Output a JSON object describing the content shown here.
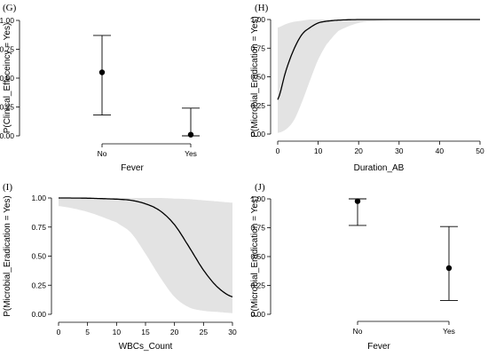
{
  "chart_data": [
    {
      "panel": "(G)",
      "type": "scatter",
      "xlabel": "Fever",
      "ylabel": "P(Clinical_Effeceincy = Yes)",
      "categories": [
        "No",
        "Yes"
      ],
      "values": [
        0.55,
        0.01
      ],
      "lower": [
        0.18,
        0.0
      ],
      "upper": [
        0.87,
        0.24
      ],
      "ylim": [
        0,
        1
      ],
      "yticks": [
        "0.00",
        "0.25",
        "0.50",
        "0.75",
        "1.00"
      ]
    },
    {
      "panel": "(H)",
      "type": "line",
      "xlabel": "Duration_AB",
      "ylabel": "P(Microbial_Eradication = Yes)",
      "xlim": [
        0,
        50
      ],
      "ylim": [
        0,
        1
      ],
      "xticks": [
        "0",
        "10",
        "20",
        "30",
        "40",
        "50"
      ],
      "yticks": [
        "0.00",
        "0.25",
        "0.50",
        "0.75",
        "1.00"
      ],
      "x": [
        0,
        2,
        4,
        6,
        8,
        10,
        12,
        15,
        20,
        25,
        30,
        40,
        50
      ],
      "y": [
        0.3,
        0.55,
        0.74,
        0.87,
        0.93,
        0.97,
        0.985,
        0.995,
        1.0,
        1.0,
        1.0,
        1.0,
        1.0
      ],
      "lower": [
        0.01,
        0.04,
        0.12,
        0.28,
        0.47,
        0.65,
        0.78,
        0.9,
        0.97,
        0.99,
        1.0,
        1.0,
        1.0
      ],
      "upper": [
        0.93,
        0.96,
        0.98,
        0.99,
        1.0,
        1.0,
        1.0,
        1.0,
        1.0,
        1.0,
        1.0,
        1.0,
        1.0
      ]
    },
    {
      "panel": "(I)",
      "type": "line",
      "xlabel": "WBCs_Count",
      "ylabel": "P(Microbial_Eradication = Yes)",
      "xlim": [
        0,
        30
      ],
      "ylim": [
        0,
        1
      ],
      "xticks": [
        "0",
        "5",
        "10",
        "15",
        "20",
        "25",
        "30"
      ],
      "yticks": [
        "0.00",
        "0.25",
        "0.50",
        "0.75",
        "1.00"
      ],
      "x": [
        0,
        5,
        10,
        12.5,
        15,
        17.5,
        20,
        22.5,
        25,
        27.5,
        30
      ],
      "y": [
        1.0,
        0.998,
        0.99,
        0.98,
        0.95,
        0.89,
        0.77,
        0.58,
        0.38,
        0.23,
        0.15
      ],
      "lower": [
        0.93,
        0.88,
        0.79,
        0.7,
        0.52,
        0.32,
        0.15,
        0.06,
        0.03,
        0.02,
        0.01
      ],
      "upper": [
        1.0,
        1.0,
        1.0,
        1.0,
        1.0,
        1.0,
        0.995,
        0.99,
        0.98,
        0.97,
        0.96
      ]
    },
    {
      "panel": "(J)",
      "type": "scatter",
      "xlabel": "Fever",
      "ylabel": "P(Microbial_Eradication = Yes)",
      "categories": [
        "No",
        "Yes"
      ],
      "values": [
        0.98,
        0.4
      ],
      "lower": [
        0.77,
        0.12
      ],
      "upper": [
        1.0,
        0.76
      ],
      "ylim": [
        0,
        1
      ],
      "yticks": [
        "0.00",
        "0.25",
        "0.50",
        "0.75",
        "1.00"
      ]
    }
  ]
}
